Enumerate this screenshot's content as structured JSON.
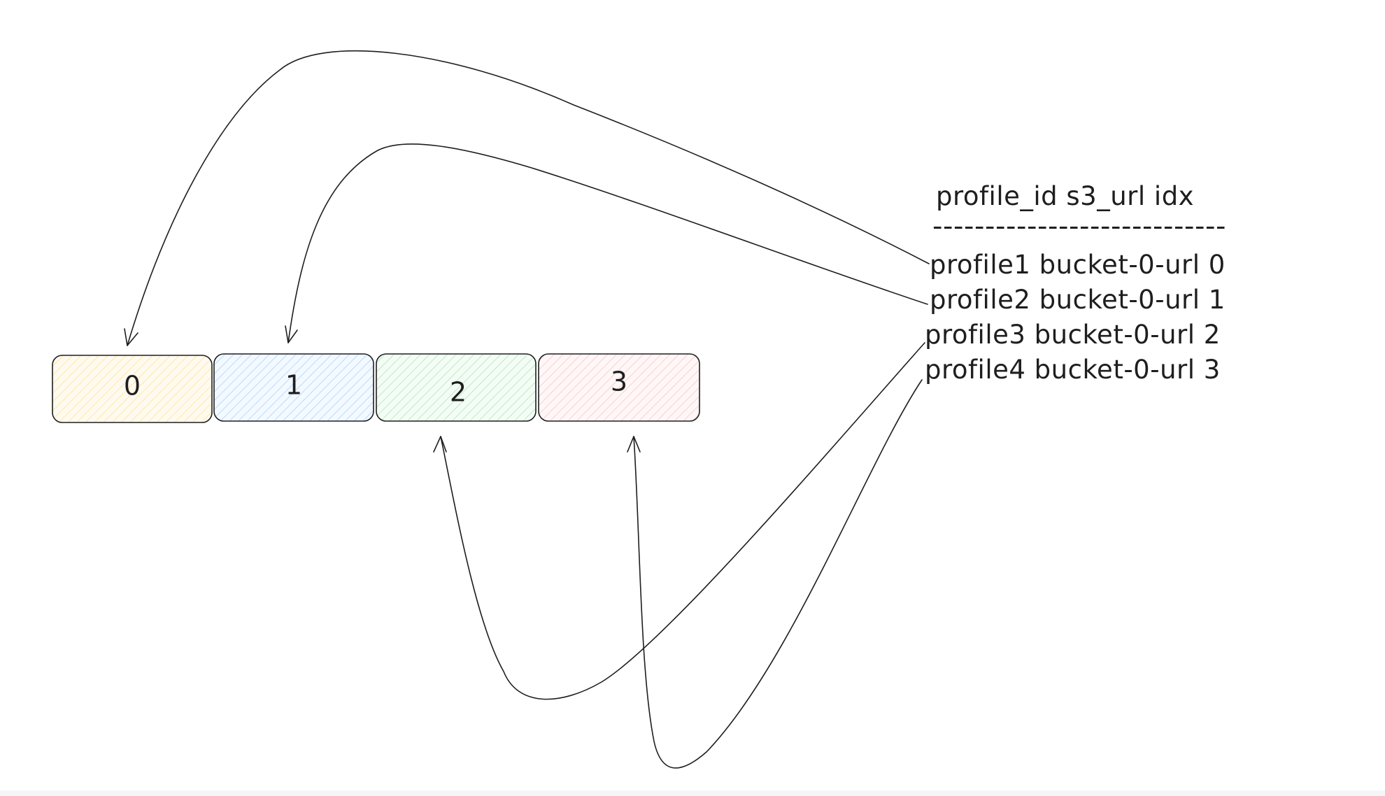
{
  "cells": [
    {
      "label": "0",
      "fill": "#fff3bf"
    },
    {
      "label": "1",
      "fill": "#d0ebff"
    },
    {
      "label": "2",
      "fill": "#d3f9d8"
    },
    {
      "label": "3",
      "fill": "#ffe3e3"
    }
  ],
  "table": {
    "header": "profile_id s3_url idx",
    "separator": "----------------------------",
    "rows": [
      "profile1 bucket-0-url 0",
      "profile2 bucket-0-url 1",
      "profile3 bucket-0-url 2",
      "profile4 bucket-0-url 3"
    ]
  },
  "stroke_color": "#1e1e1e"
}
